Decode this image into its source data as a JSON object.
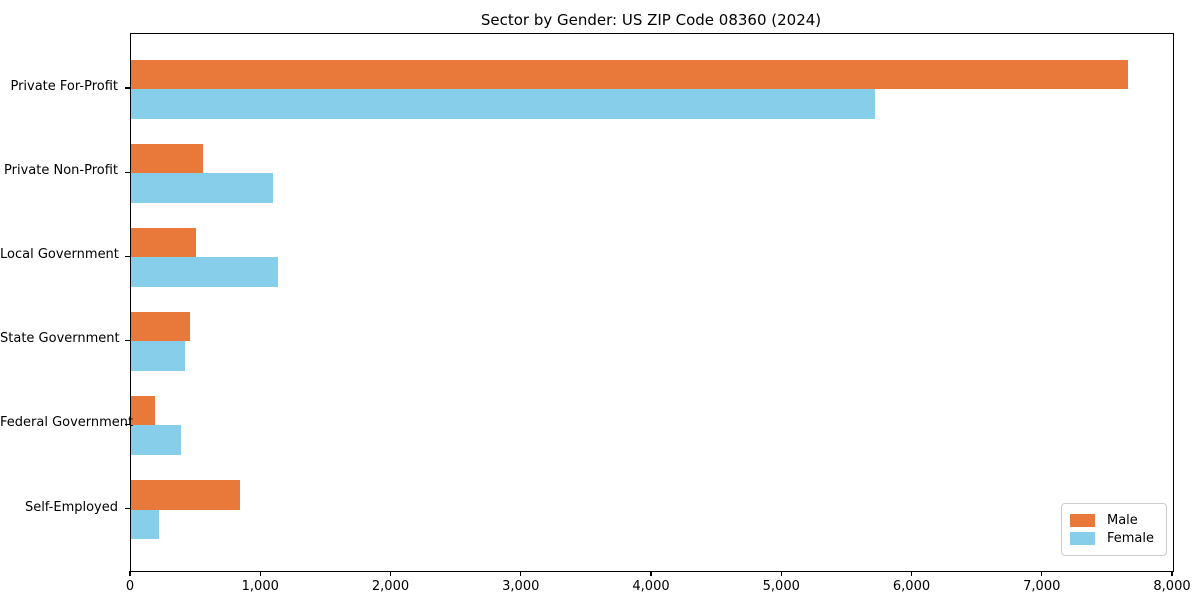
{
  "chart_data": {
    "type": "bar",
    "orientation": "horizontal",
    "title": "Sector by Gender: US ZIP Code 08360 (2024)",
    "xlabel": "",
    "ylabel": "",
    "categories": [
      "Private For-Profit",
      "Private Non-Profit",
      "Local Government",
      "State Government",
      "Federal Government",
      "Self-Employed"
    ],
    "series": [
      {
        "name": "Male",
        "color": "#E8793B",
        "values": [
          7655,
          555,
          500,
          455,
          185,
          840
        ]
      },
      {
        "name": "Female",
        "color": "#87CEEB",
        "values": [
          5715,
          1090,
          1130,
          415,
          385,
          215
        ]
      }
    ],
    "xlim": [
      0,
      8000
    ],
    "xticks": [
      0,
      1000,
      2000,
      3000,
      4000,
      5000,
      6000,
      7000,
      8000
    ],
    "xtick_labels": [
      "0",
      "1,000",
      "2,000",
      "3,000",
      "4,000",
      "5,000",
      "6,000",
      "7,000",
      "8,000"
    ],
    "grid": false,
    "legend_position": "lower right",
    "spine_color": "#000000",
    "background_color": "#ffffff"
  }
}
